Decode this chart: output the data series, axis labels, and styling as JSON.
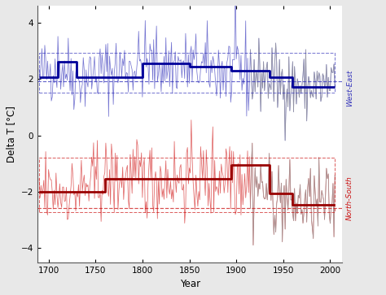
{
  "year_start": 1690,
  "year_end": 2005,
  "ylim": [
    -4.5,
    4.6
  ],
  "yticks": [
    -4,
    -2,
    0,
    2,
    4
  ],
  "ylabel": "Delta T [°C]",
  "xlabel": "Year",
  "background_color": "#e8e8e8",
  "plot_bg": "#ffffff",
  "we_color": "#3333bb",
  "we_light": "#6666cc",
  "ns_color": "#cc1111",
  "ns_light": "#dd5555",
  "gray_color": "#999999",
  "we_mean": 1.92,
  "ns_mean": -2.58,
  "we_step_years": [
    1690,
    1710,
    1730,
    1800,
    1850,
    1895,
    1935,
    1960,
    2005
  ],
  "we_step_vals": [
    2.05,
    2.6,
    2.05,
    2.55,
    2.45,
    2.28,
    2.05,
    1.72,
    1.72
  ],
  "ns_step_years": [
    1690,
    1730,
    1760,
    1810,
    1870,
    1895,
    1935,
    1960,
    1995,
    2005
  ],
  "ns_step_vals": [
    -2.0,
    -2.0,
    -1.55,
    -1.55,
    -1.55,
    -1.05,
    -2.05,
    -2.45,
    -2.45,
    -2.45
  ],
  "we_conf_upper": 2.92,
  "we_conf_lower": 1.5,
  "ns_conf_upper": -0.78,
  "ns_conf_lower": -2.72,
  "gray_start": 1915,
  "noise_seed": 42,
  "xticks": [
    1700,
    1750,
    1800,
    1850,
    1900,
    1950,
    2000
  ]
}
